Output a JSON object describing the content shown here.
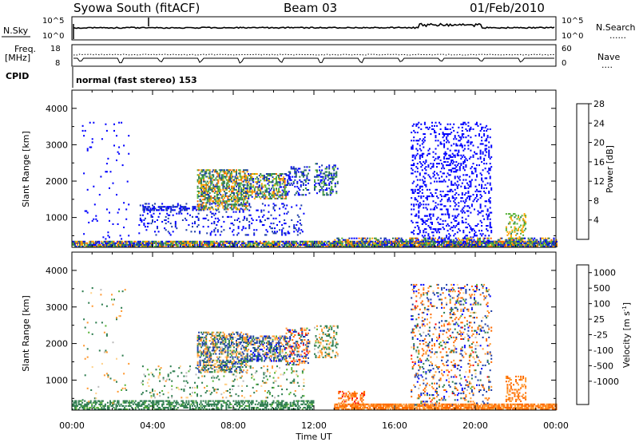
{
  "header": {
    "station": "Syowa South (fitACF)",
    "beam": "Beam 03",
    "date": "01/Feb/2010"
  },
  "noise_panel": {
    "left_label": "N.Sky",
    "left_ticks": [
      "10^5",
      "10^0"
    ],
    "right_ticks": [
      "10^5",
      "10^0"
    ],
    "right_label": "N.Search",
    "right_legend": "......"
  },
  "freq_panel": {
    "left_label_top": "Freq.",
    "left_label_bottom": "[MHz]",
    "left_ticks": [
      "18",
      "8"
    ],
    "right_ticks": [
      "60",
      "0"
    ],
    "right_label": "Nave",
    "right_legend": "....",
    "cpid_label": "CPID",
    "mode": "normal (fast stereo) 153"
  },
  "colors": {
    "power_scale": [
      "#0000ff",
      "#1f3fa8",
      "#2e7d4f",
      "#58b33a",
      "#d8d800",
      "#ffa400",
      "#ff6a00",
      "#ff0000"
    ],
    "velocity_scale": [
      "#0000ff",
      "#1f3fa8",
      "#2e7d4f",
      "#58b33a",
      "#bbbbbb",
      "#ffd28a",
      "#ff9a33",
      "#ff6a00",
      "#ff0000"
    ]
  },
  "chart_data": [
    {
      "type": "heatmap",
      "title": "Power",
      "ylabel": "Slant Range [km]",
      "xlabel": "",
      "x_ticks": [
        "00:00",
        "04:00",
        "08:00",
        "12:00",
        "16:00",
        "20:00",
        "00:00"
      ],
      "y_ticks": [
        "1000",
        "2000",
        "3000",
        "4000"
      ],
      "xlim_hours": [
        0,
        24
      ],
      "ylim_km": [
        180,
        4500
      ],
      "colorbar": {
        "label": "Power [dB]",
        "ticks": [
          "4",
          "8",
          "12",
          "16",
          "20",
          "24",
          "28"
        ],
        "range": [
          0,
          30
        ],
        "bins": [
          [
            0,
            6
          ],
          [
            6,
            10
          ],
          [
            10,
            14
          ],
          [
            14,
            18
          ],
          [
            18,
            22
          ],
          [
            22,
            26
          ],
          [
            26,
            30
          ]
        ],
        "bin_colors": [
          "#0000ff",
          "#1f3fa8",
          "#2e7d4f",
          "#58b33a",
          "#ffa400",
          "#ff6a00",
          "#ff0000"
        ]
      },
      "echo_regions": [
        {
          "t0": 0.0,
          "t1": 24.0,
          "r0": 180,
          "r1": 330,
          "dens": 0.85,
          "v": [
            2,
            24
          ]
        },
        {
          "t0": 3.3,
          "t1": 11.5,
          "r0": 500,
          "r1": 1400,
          "dens": 0.12,
          "v": [
            2,
            8
          ]
        },
        {
          "t0": 3.5,
          "t1": 6.5,
          "r0": 1180,
          "r1": 1280,
          "dens": 0.5,
          "v": [
            2,
            8
          ]
        },
        {
          "t0": 6.2,
          "t1": 8.7,
          "r0": 1200,
          "r1": 2300,
          "dens": 0.55,
          "v": [
            6,
            24
          ]
        },
        {
          "t0": 8.6,
          "t1": 10.6,
          "r0": 1500,
          "r1": 2200,
          "dens": 0.5,
          "v": [
            4,
            24
          ]
        },
        {
          "t0": 10.6,
          "t1": 11.8,
          "r0": 1600,
          "r1": 2400,
          "dens": 0.3,
          "v": [
            2,
            12
          ]
        },
        {
          "t0": 12.0,
          "t1": 13.2,
          "r0": 1600,
          "r1": 2500,
          "dens": 0.35,
          "v": [
            2,
            16
          ]
        },
        {
          "t0": 16.8,
          "t1": 20.8,
          "r0": 300,
          "r1": 3600,
          "dens": 0.18,
          "v": [
            2,
            6
          ]
        },
        {
          "t0": 13.0,
          "t1": 24.0,
          "r0": 180,
          "r1": 420,
          "dens": 0.45,
          "v": [
            2,
            24
          ]
        },
        {
          "t0": 21.5,
          "t1": 22.5,
          "r0": 400,
          "r1": 1100,
          "dens": 0.3,
          "v": [
            12,
            22
          ]
        },
        {
          "t0": 0.5,
          "t1": 2.8,
          "r0": 300,
          "r1": 3600,
          "dens": 0.02,
          "v": [
            2,
            6
          ]
        }
      ]
    },
    {
      "type": "heatmap",
      "title": "Velocity",
      "ylabel": "Slant Range [km]",
      "xlabel": "Time UT",
      "x_ticks": [
        "00:00",
        "04:00",
        "08:00",
        "12:00",
        "16:00",
        "20:00",
        "00:00"
      ],
      "y_ticks": [
        "1000",
        "2000",
        "3000",
        "4000"
      ],
      "xlim_hours": [
        0,
        24
      ],
      "ylim_km": [
        180,
        4500
      ],
      "colorbar": {
        "label": "Velocity [m s",
        "label_exp": "-1",
        "label_close": "]",
        "ticks": [
          "1000",
          "500",
          "100",
          "25",
          "-25",
          "-100",
          "-500",
          "-1000"
        ],
        "range": [
          -1250,
          1250
        ],
        "bins": [
          [
            750,
            1250
          ],
          [
            300,
            750
          ],
          [
            60,
            300
          ],
          [
            15,
            60
          ],
          [
            -15,
            15
          ],
          [
            -60,
            -15
          ],
          [
            -300,
            -60
          ],
          [
            -750,
            -300
          ],
          [
            -1250,
            -750
          ]
        ],
        "bin_colors": [
          "#0000ff",
          "#1f3fa8",
          "#2e7d4f",
          "#58b33a",
          "#bbbbbb",
          "#ffd28a",
          "#ff9a33",
          "#ff6a00",
          "#ff0000"
        ]
      },
      "echo_regions": [
        {
          "t0": 0.0,
          "t1": 12.0,
          "r0": 180,
          "r1": 420,
          "dens": 0.5,
          "v": [
            20,
            300
          ]
        },
        {
          "t0": 13.0,
          "t1": 24.0,
          "r0": 180,
          "r1": 360,
          "dens": 0.8,
          "v": [
            -600,
            -60
          ]
        },
        {
          "t0": 6.2,
          "t1": 8.7,
          "r0": 1200,
          "r1": 2300,
          "dens": 0.5,
          "v": [
            -300,
            600
          ]
        },
        {
          "t0": 8.6,
          "t1": 10.6,
          "r0": 1500,
          "r1": 2200,
          "dens": 0.5,
          "v": [
            -300,
            900
          ]
        },
        {
          "t0": 10.6,
          "t1": 11.8,
          "r0": 1400,
          "r1": 2400,
          "dens": 0.35,
          "v": [
            -1000,
            900
          ]
        },
        {
          "t0": 12.0,
          "t1": 13.2,
          "r0": 1600,
          "r1": 2500,
          "dens": 0.3,
          "v": [
            -300,
            300
          ]
        },
        {
          "t0": 3.3,
          "t1": 11.5,
          "r0": 500,
          "r1": 1400,
          "dens": 0.1,
          "v": [
            -100,
            200
          ]
        },
        {
          "t0": 16.8,
          "t1": 20.8,
          "r0": 300,
          "r1": 3600,
          "dens": 0.16,
          "v": [
            -800,
            900
          ]
        },
        {
          "t0": 13.2,
          "t1": 14.5,
          "r0": 300,
          "r1": 700,
          "dens": 0.4,
          "v": [
            -800,
            -100
          ]
        },
        {
          "t0": 21.5,
          "t1": 22.5,
          "r0": 400,
          "r1": 1100,
          "dens": 0.3,
          "v": [
            -600,
            -60
          ]
        },
        {
          "t0": 0.5,
          "t1": 2.8,
          "r0": 300,
          "r1": 3600,
          "dens": 0.02,
          "v": [
            -200,
            200
          ]
        }
      ]
    }
  ]
}
